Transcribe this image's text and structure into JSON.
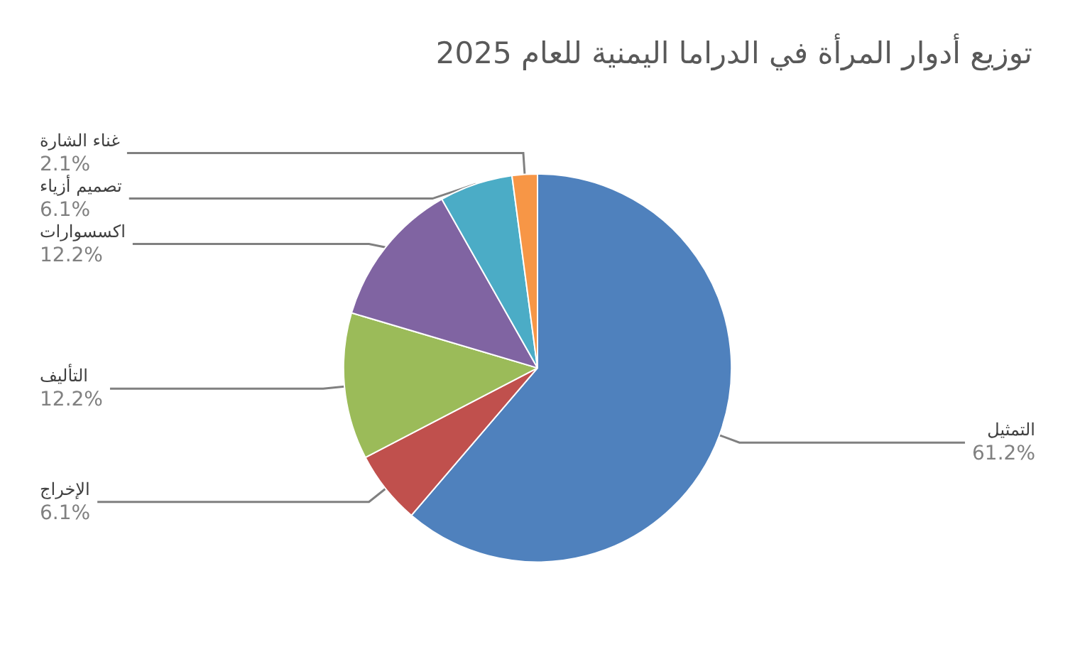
{
  "chart_data": {
    "type": "pie",
    "title": "توزيع أدوار المرأة في الدراما اليمنية للعام 2025",
    "categories": [
      "التمثيل",
      "الإخراج",
      "التأليف",
      "اكسسوارات",
      "تصميم أزياء",
      "غناء الشارة"
    ],
    "values": [
      61.2,
      6.1,
      12.2,
      12.2,
      6.1,
      2.1
    ],
    "value_labels": [
      "61.2%",
      "6.1%",
      "12.2%",
      "12.2%",
      "6.1%",
      "2.1%"
    ],
    "colors": [
      "#4f81bd",
      "#c0504d",
      "#9bbb59",
      "#8064a2",
      "#4bacc6",
      "#f79646"
    ],
    "legend": false
  }
}
